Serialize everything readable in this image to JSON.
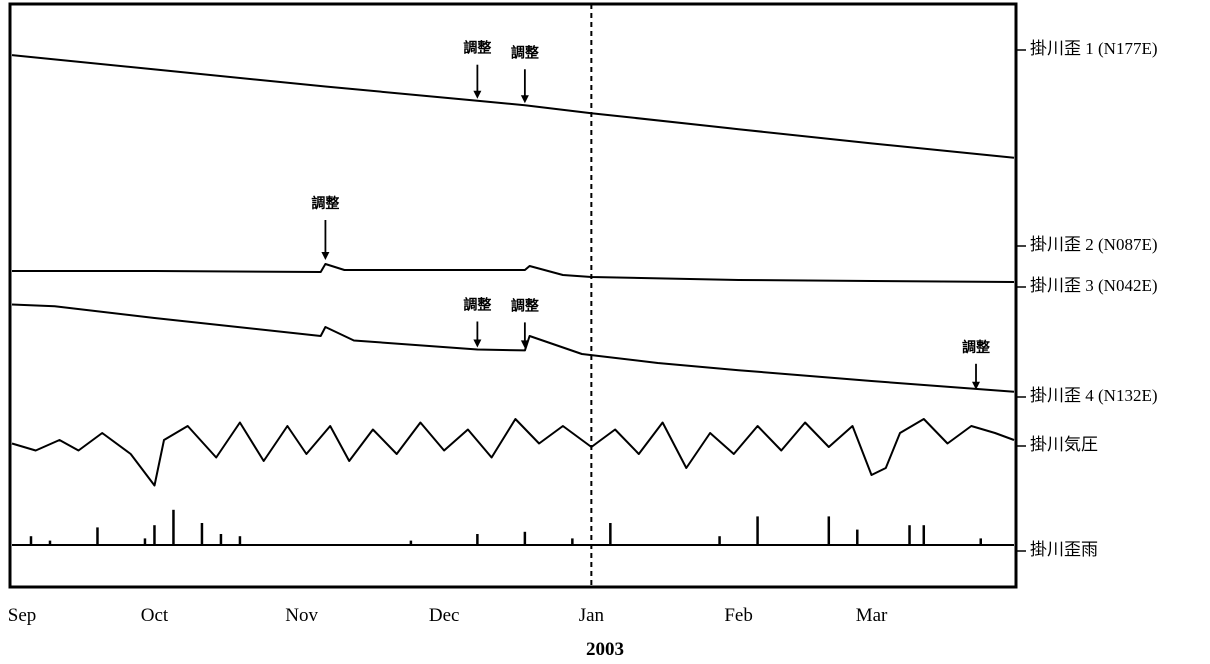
{
  "chart_data": {
    "type": "line",
    "title": "",
    "xlabel": "2003",
    "ylabel": "",
    "grid": false,
    "legend_placement": "right",
    "x_ticks": [
      "Sep",
      "Oct",
      "Nov",
      "Dec",
      "Jan",
      "Feb",
      "Mar"
    ],
    "x_range": [
      "2002-09-01",
      "2003-03-31"
    ],
    "marker_date": "2003-01-01",
    "series": [
      {
        "name": "掛川歪 1 (N177E)",
        "points": [
          [
            "2002-09-01",
            0.95
          ],
          [
            "2002-10-01",
            0.98
          ],
          [
            "2002-11-06",
            1.02
          ],
          [
            "2002-12-08",
            1.05
          ],
          [
            "2002-12-18",
            1.07
          ],
          [
            "2003-01-01",
            1.11
          ],
          [
            "2003-02-01",
            1.16
          ],
          [
            "2003-03-01",
            1.2
          ],
          [
            "2003-03-31",
            1.23
          ]
        ]
      },
      {
        "name": "掛川歪 2 (N087E)",
        "points": [
          [
            "2002-09-01",
            1.7
          ],
          [
            "2002-10-01",
            1.45
          ],
          [
            "2002-11-06",
            1.15
          ],
          [
            "2002-12-08",
            0.9
          ],
          [
            "2002-12-18",
            0.82
          ],
          [
            "2003-01-01",
            0.68
          ],
          [
            "2003-02-01",
            0.4
          ],
          [
            "2003-03-01",
            0.15
          ],
          [
            "2003-03-31",
            -0.1
          ]
        ]
      },
      {
        "name": "掛川歪 3 (N042E)",
        "points": [
          [
            "2002-09-01",
            -0.01
          ],
          [
            "2002-10-01",
            -0.01
          ],
          [
            "2002-11-05",
            -0.02
          ],
          [
            "2002-11-06",
            0.06
          ],
          [
            "2002-11-10",
            0.0
          ],
          [
            "2002-12-18",
            0.0
          ],
          [
            "2002-12-19",
            0.04
          ],
          [
            "2002-12-26",
            -0.05
          ],
          [
            "2003-01-01",
            -0.07
          ],
          [
            "2003-02-01",
            -0.1
          ],
          [
            "2003-03-01",
            -0.11
          ],
          [
            "2003-03-31",
            -0.12
          ]
        ]
      },
      {
        "name": "掛川歪 4 (N132E)",
        "points": [
          [
            "2002-09-01",
            0.35
          ],
          [
            "2002-09-10",
            0.33
          ],
          [
            "2002-10-01",
            0.2
          ],
          [
            "2002-11-05",
            0.0
          ],
          [
            "2002-11-06",
            0.1
          ],
          [
            "2002-11-12",
            -0.05
          ],
          [
            "2002-12-08",
            -0.15
          ],
          [
            "2002-12-18",
            -0.16
          ],
          [
            "2002-12-19",
            0.0
          ],
          [
            "2002-12-30",
            -0.2
          ],
          [
            "2003-01-15",
            -0.3
          ],
          [
            "2003-02-01",
            -0.38
          ],
          [
            "2003-03-01",
            -0.5
          ],
          [
            "2003-03-31",
            -0.62
          ]
        ]
      },
      {
        "name": "掛川気圧",
        "points": [
          [
            "2002-09-01",
            0.05
          ],
          [
            "2002-09-06",
            -0.05
          ],
          [
            "2002-09-11",
            0.1
          ],
          [
            "2002-09-15",
            -0.05
          ],
          [
            "2002-09-20",
            0.2
          ],
          [
            "2002-09-26",
            -0.1
          ],
          [
            "2002-10-01",
            -0.55
          ],
          [
            "2002-10-03",
            0.1
          ],
          [
            "2002-10-08",
            0.3
          ],
          [
            "2002-10-14",
            -0.15
          ],
          [
            "2002-10-19",
            0.35
          ],
          [
            "2002-10-24",
            -0.2
          ],
          [
            "2002-10-29",
            0.3
          ],
          [
            "2002-11-02",
            -0.1
          ],
          [
            "2002-11-07",
            0.3
          ],
          [
            "2002-11-11",
            -0.2
          ],
          [
            "2002-11-16",
            0.25
          ],
          [
            "2002-11-21",
            -0.1
          ],
          [
            "2002-11-26",
            0.35
          ],
          [
            "2002-12-01",
            -0.05
          ],
          [
            "2002-12-06",
            0.25
          ],
          [
            "2002-12-11",
            -0.15
          ],
          [
            "2002-12-16",
            0.4
          ],
          [
            "2002-12-21",
            0.05
          ],
          [
            "2002-12-26",
            0.3
          ],
          [
            "2003-01-01",
            0.0
          ],
          [
            "2003-01-06",
            0.25
          ],
          [
            "2003-01-11",
            -0.1
          ],
          [
            "2003-01-16",
            0.35
          ],
          [
            "2003-01-21",
            -0.3
          ],
          [
            "2003-01-26",
            0.2
          ],
          [
            "2003-01-31",
            -0.1
          ],
          [
            "2003-02-05",
            0.3
          ],
          [
            "2003-02-10",
            -0.05
          ],
          [
            "2003-02-15",
            0.35
          ],
          [
            "2003-02-20",
            0.0
          ],
          [
            "2003-02-25",
            0.3
          ],
          [
            "2003-03-01",
            -0.4
          ],
          [
            "2003-03-04",
            -0.3
          ],
          [
            "2003-03-07",
            0.2
          ],
          [
            "2003-03-12",
            0.4
          ],
          [
            "2003-03-17",
            0.05
          ],
          [
            "2003-03-22",
            0.3
          ],
          [
            "2003-03-27",
            0.2
          ],
          [
            "2003-03-31",
            0.1
          ]
        ]
      },
      {
        "name": "掛川歪雨",
        "baseline": 0,
        "bars": [
          [
            "2002-09-05",
            0.4
          ],
          [
            "2002-09-09",
            0.2
          ],
          [
            "2002-09-19",
            0.8
          ],
          [
            "2002-09-29",
            0.3
          ],
          [
            "2002-10-01",
            0.9
          ],
          [
            "2002-10-05",
            1.6
          ],
          [
            "2002-10-11",
            1.0
          ],
          [
            "2002-10-15",
            0.5
          ],
          [
            "2002-10-19",
            0.4
          ],
          [
            "2002-11-24",
            0.2
          ],
          [
            "2002-12-08",
            0.5
          ],
          [
            "2002-12-18",
            0.6
          ],
          [
            "2002-12-28",
            0.3
          ],
          [
            "2003-01-05",
            1.0
          ],
          [
            "2003-01-28",
            0.4
          ],
          [
            "2003-02-05",
            1.3
          ],
          [
            "2003-02-20",
            1.3
          ],
          [
            "2003-02-26",
            0.7
          ],
          [
            "2003-03-09",
            0.9
          ],
          [
            "2003-03-12",
            0.9
          ],
          [
            "2003-03-24",
            0.3
          ]
        ]
      }
    ],
    "annotations": [
      {
        "text": "調整",
        "date": "2002-11-06",
        "series": "掛川歪 1 (N177E)"
      },
      {
        "text": "調整",
        "date": "2002-12-08",
        "series": "掛川歪 1 (N177E)"
      },
      {
        "text": "調整",
        "date": "2002-12-18",
        "series": "掛川歪 1 (N177E)"
      },
      {
        "text": "調整",
        "date": "2003-03-23",
        "series": "掛川歪 1 (N177E)"
      },
      {
        "text": "調整",
        "date": "2002-12-08",
        "series": "掛川歪 2 (N087E)"
      },
      {
        "text": "調整",
        "date": "2002-12-18",
        "series": "掛川歪 2 (N087E)"
      },
      {
        "text": "調整",
        "date": "2002-11-06",
        "series": "掛川歪 3 (N042E)"
      },
      {
        "text": "調整",
        "date": "2002-12-08",
        "series": "掛川歪 4 (N132E)"
      },
      {
        "text": "調整",
        "date": "2002-12-18",
        "series": "掛川歪 4 (N132E)"
      },
      {
        "text": "調整",
        "date": "2003-03-23",
        "series": "掛川歪 4 (N132E)"
      }
    ]
  }
}
